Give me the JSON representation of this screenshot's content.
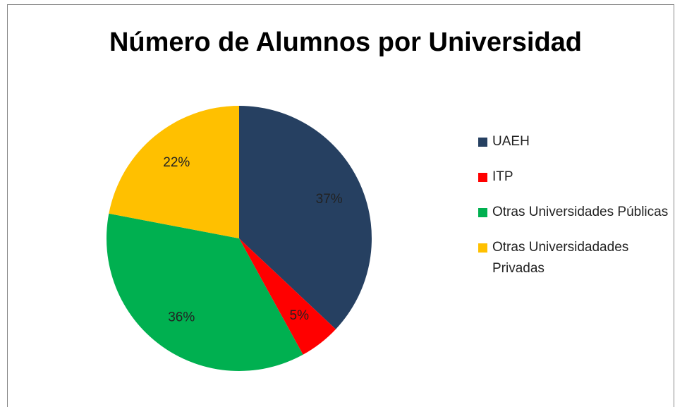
{
  "chart_data": {
    "type": "pie",
    "title": "Número de Alumnos por Universidad",
    "categories": [
      "UAEH",
      "ITP",
      "Otras Universidades Públicas",
      "Otras Universidadades Privadas"
    ],
    "values": [
      37,
      5,
      36,
      22
    ],
    "value_labels": [
      "37%",
      "5%",
      "36%",
      "22%"
    ],
    "colors": [
      "#264061",
      "#ff0000",
      "#00b050",
      "#ffc000"
    ],
    "legend": "right"
  }
}
